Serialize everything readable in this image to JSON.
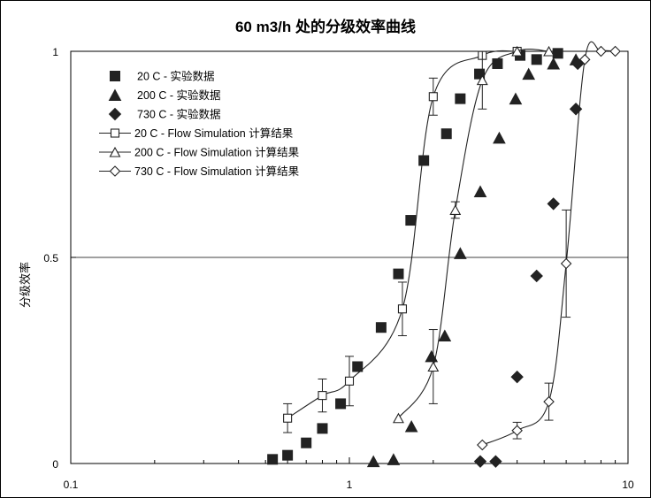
{
  "chart_data": {
    "type": "scatter",
    "title": "60 m3/h 处的分级效率曲线",
    "xlabel": "",
    "ylabel": "分级效率",
    "xscale": "log",
    "xlim": [
      0.1,
      10
    ],
    "ylim": [
      0,
      1
    ],
    "x_ticks": [
      0.1,
      1,
      10
    ],
    "x_tick_labels": [
      "0.1",
      "1",
      "10"
    ],
    "y_ticks": [
      0,
      0.5,
      1
    ],
    "y_tick_labels": [
      "0",
      "0.5",
      "1"
    ],
    "reference_line": 0.5,
    "legend_position": "top-left",
    "series": [
      {
        "name": "20 C - 实验数据",
        "marker": "square-filled",
        "x": [
          0.53,
          0.6,
          0.7,
          0.8,
          0.93,
          1.07,
          1.3,
          1.5,
          1.66,
          1.85,
          2.23,
          2.5,
          2.93,
          3.4,
          4.1,
          4.7,
          5.6
        ],
        "y": [
          0.01,
          0.02,
          0.05,
          0.085,
          0.145,
          0.235,
          0.33,
          0.46,
          0.59,
          0.735,
          0.8,
          0.885,
          0.945,
          0.97,
          0.99,
          0.98,
          0.995
        ]
      },
      {
        "name": "200 C - 实验数据",
        "marker": "triangle-filled",
        "x": [
          1.22,
          1.44,
          1.67,
          1.97,
          2.2,
          2.5,
          2.95,
          3.45,
          3.95,
          4.4,
          5.4,
          6.5
        ],
        "y": [
          0.005,
          0.01,
          0.09,
          0.26,
          0.31,
          0.51,
          0.66,
          0.79,
          0.885,
          0.945,
          0.97,
          0.98
        ]
      },
      {
        "name": "730 C - 实验数据",
        "marker": "diamond-filled",
        "x": [
          2.95,
          3.35,
          4.0,
          4.7,
          5.4,
          6.5,
          6.6
        ],
        "y": [
          0.005,
          0.005,
          0.21,
          0.455,
          0.63,
          0.86,
          0.97
        ]
      },
      {
        "name": "20 C - Flow Simulation 计算结果",
        "marker": "square-open",
        "x": [
          0.6,
          0.8,
          1.0,
          1.55,
          2.0,
          3.0,
          4.0
        ],
        "y": [
          0.11,
          0.165,
          0.2,
          0.375,
          0.89,
          0.99,
          1.0
        ],
        "err": [
          0.035,
          0.04,
          0.06,
          0.065,
          0.045,
          0,
          0
        ]
      },
      {
        "name": "200 C - Flow Simulation 计算结果",
        "marker": "triangle-open",
        "x": [
          1.5,
          2.0,
          2.4,
          3.0,
          4.0,
          5.2
        ],
        "y": [
          0.11,
          0.235,
          0.615,
          0.93,
          1.0,
          1.0
        ],
        "err": [
          0,
          0.09,
          0.02,
          0.07,
          0,
          0
        ]
      },
      {
        "name": "730 C - Flow Simulation 计算结果",
        "marker": "diamond-open",
        "x": [
          3.0,
          4.0,
          5.2,
          6.0,
          7.0,
          8.0,
          9.0
        ],
        "y": [
          0.045,
          0.08,
          0.15,
          0.485,
          0.98,
          1.0,
          1.0
        ],
        "err": [
          0,
          0.02,
          0.045,
          0.13,
          0,
          0,
          0
        ]
      }
    ]
  }
}
